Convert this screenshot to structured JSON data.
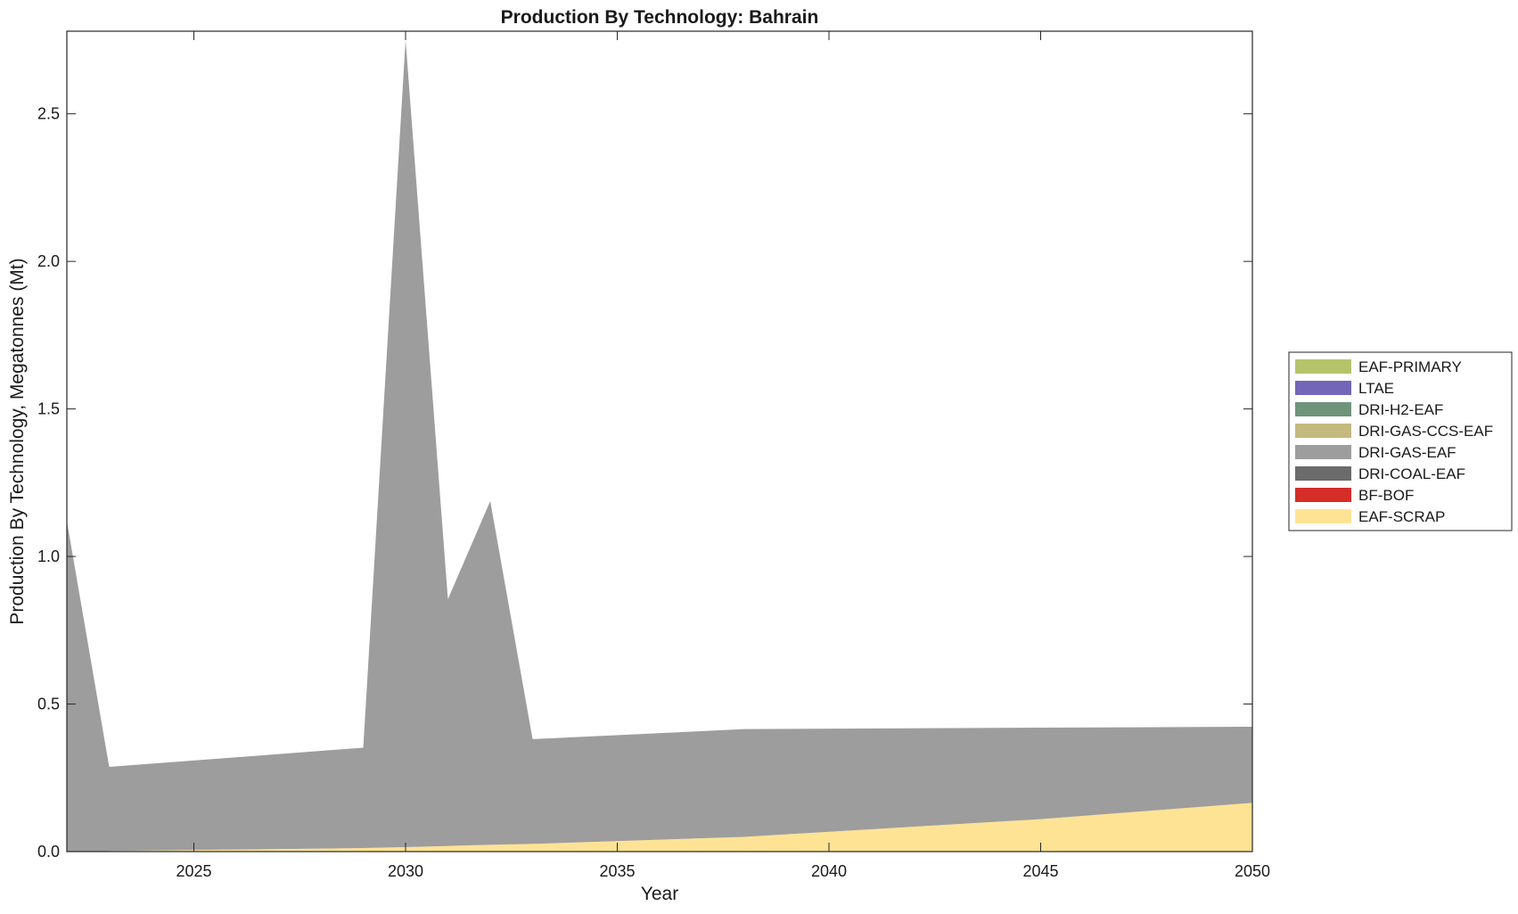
{
  "chart_data": {
    "type": "area",
    "title": "Production By Technology: Bahrain",
    "xlabel": "Year",
    "ylabel": "Production By Technology, Megatonnes (Mt)",
    "xlim": [
      2022,
      2050
    ],
    "ylim": [
      0,
      2.78
    ],
    "xticks": [
      2025,
      2030,
      2035,
      2040,
      2045,
      2050
    ],
    "xtick_labels": [
      "2025",
      "2030",
      "2035",
      "2040",
      "2045",
      "2050"
    ],
    "yticks": [
      0,
      0.5,
      1,
      1.5,
      2,
      2.5
    ],
    "ytick_labels": [
      "0.0",
      "0.5",
      "1.0",
      "1.5",
      "2.0",
      "2.5"
    ],
    "stacked": true,
    "grid": false,
    "legend_position": "outside-right",
    "x": [
      2022,
      2023,
      2029,
      2030,
      2031,
      2032,
      2033,
      2038,
      2045,
      2050
    ],
    "legend": [
      {
        "name": "EAF-PRIMARY",
        "color": "#b5c46a"
      },
      {
        "name": "LTAE",
        "color": "#7366b8"
      },
      {
        "name": "DRI-H2-EAF",
        "color": "#6e947a"
      },
      {
        "name": "DRI-GAS-CCS-EAF",
        "color": "#c4b97e"
      },
      {
        "name": "DRI-GAS-EAF",
        "color": "#9d9d9d"
      },
      {
        "name": "DRI-COAL-EAF",
        "color": "#6b6b6b"
      },
      {
        "name": "BF-BOF",
        "color": "#d52d27"
      },
      {
        "name": "EAF-SCRAP",
        "color": "#fee395"
      }
    ],
    "series": [
      {
        "name": "EAF-SCRAP",
        "color": "#fee395",
        "values": [
          0.0,
          0.002,
          0.012,
          0.015,
          0.019,
          0.023,
          0.026,
          0.05,
          0.11,
          0.165
        ]
      },
      {
        "name": "BF-BOF",
        "color": "#d52d27",
        "values": [
          0,
          0,
          0,
          0,
          0,
          0,
          0,
          0,
          0,
          0
        ]
      },
      {
        "name": "DRI-COAL-EAF",
        "color": "#6b6b6b",
        "values": [
          0,
          0,
          0,
          0,
          0,
          0,
          0,
          0,
          0,
          0
        ]
      },
      {
        "name": "DRI-GAS-EAF",
        "color": "#9d9d9d",
        "values": [
          1.12,
          0.285,
          0.34,
          2.735,
          0.836,
          1.165,
          0.355,
          0.365,
          0.31,
          0.258
        ]
      },
      {
        "name": "DRI-GAS-CCS-EAF",
        "color": "#c4b97e",
        "values": [
          0,
          0,
          0,
          0,
          0,
          0,
          0,
          0,
          0,
          0
        ]
      },
      {
        "name": "DRI-H2-EAF",
        "color": "#6e947a",
        "values": [
          0,
          0,
          0,
          0,
          0,
          0,
          0,
          0,
          0,
          0
        ]
      },
      {
        "name": "LTAE",
        "color": "#7366b8",
        "values": [
          0,
          0,
          0,
          0,
          0,
          0,
          0,
          0,
          0,
          0
        ]
      },
      {
        "name": "EAF-PRIMARY",
        "color": "#b5c46a",
        "values": [
          0,
          0,
          0,
          0,
          0,
          0,
          0,
          0,
          0,
          0
        ]
      }
    ]
  }
}
